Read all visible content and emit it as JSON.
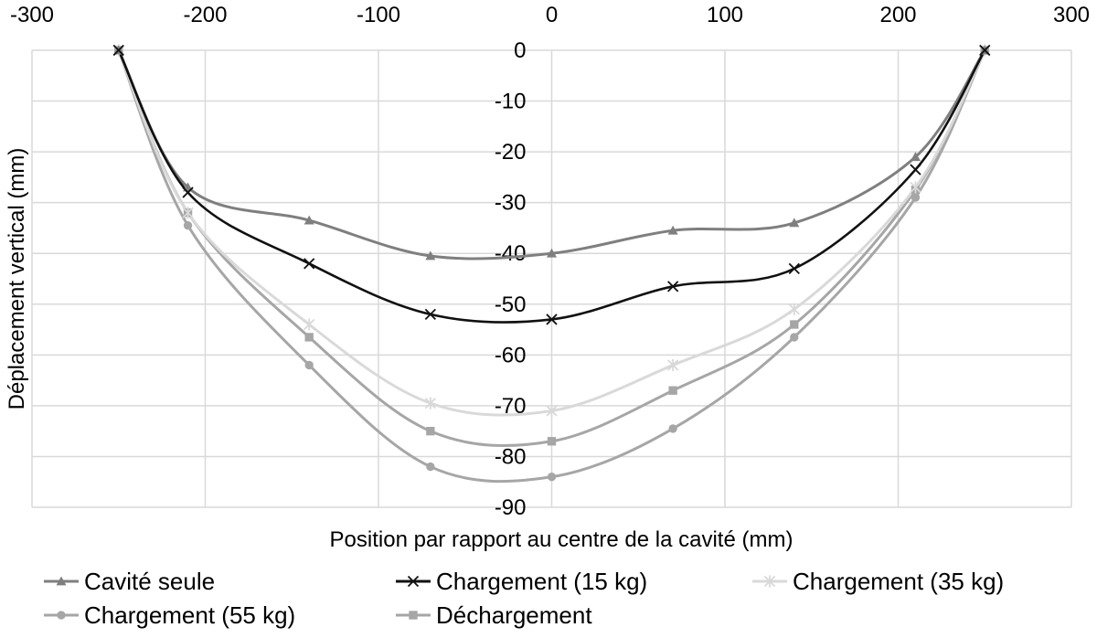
{
  "chart_data": {
    "type": "line",
    "title": "",
    "xlabel": "Position par rapport au centre de la cavité (mm)",
    "ylabel": "Déplacement vertical (mm)",
    "xlim": [
      -300,
      300
    ],
    "ylim": [
      -90,
      0
    ],
    "x_ticks": [
      -300,
      -200,
      -100,
      0,
      100,
      200,
      300
    ],
    "y_ticks": [
      0,
      -10,
      -20,
      -30,
      -40,
      -50,
      -60,
      -70,
      -80,
      -90
    ],
    "x_axis_position": "top",
    "grid": true,
    "legend_position": "bottom",
    "series": [
      {
        "name": "Cavité seule",
        "color": "#7f7f7f",
        "marker": "triangle",
        "x": [
          -250,
          -210,
          -140,
          -70,
          0,
          70,
          140,
          210,
          250
        ],
        "y": [
          0,
          -27,
          -33.5,
          -40.5,
          -40,
          -35.5,
          -34,
          -21,
          0
        ]
      },
      {
        "name": "Chargement  (15 kg)",
        "color": "#111111",
        "marker": "x",
        "x": [
          -250,
          -210,
          -140,
          -70,
          0,
          70,
          140,
          210,
          250
        ],
        "y": [
          0,
          -28,
          -42,
          -52,
          -53,
          -46.5,
          -43,
          -23.5,
          0
        ]
      },
      {
        "name": "Chargement (35 kg)",
        "color": "#d9d9d9",
        "marker": "star",
        "x": [
          -250,
          -210,
          -140,
          -70,
          0,
          70,
          140,
          210,
          250
        ],
        "y": [
          0,
          -32,
          -54,
          -69.5,
          -71,
          -62,
          -51,
          -27,
          0
        ]
      },
      {
        "name": "Chargement (55 kg)",
        "color": "#a6a6a6",
        "marker": "circle",
        "x": [
          -250,
          -210,
          -140,
          -70,
          0,
          70,
          140,
          210,
          250
        ],
        "y": [
          0,
          -34.5,
          -62,
          -82,
          -84,
          -74.5,
          -56.5,
          -29,
          0
        ]
      },
      {
        "name": "Déchargement",
        "color": "#a6a6a6",
        "marker": "square",
        "x": [
          -250,
          -210,
          -140,
          -70,
          0,
          70,
          140,
          210,
          250
        ],
        "y": [
          0,
          -32,
          -56.5,
          -75,
          -77,
          -67,
          -54,
          -27.5,
          0
        ]
      }
    ]
  }
}
